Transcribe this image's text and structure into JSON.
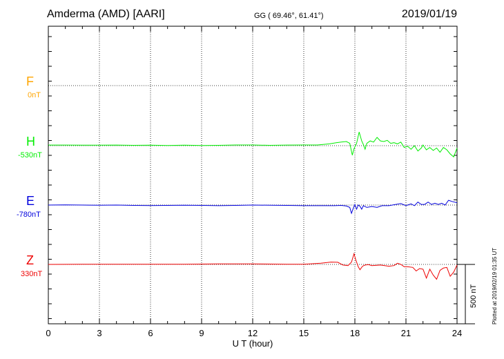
{
  "header": {
    "station": "Amderma (AMD)  [AARI]",
    "coords": "GG ( 69.46°,  61.41°)",
    "date": "2019/01/19"
  },
  "footer": {
    "plotted": "Plotted at 2019/02/19 01:35 UT",
    "scale_bar": "500 nT"
  },
  "chart_data": {
    "type": "line",
    "xlabel": "U T (hour)",
    "xlim": [
      0,
      24
    ],
    "xticks": [
      0,
      3,
      6,
      9,
      12,
      15,
      18,
      21,
      24
    ],
    "x_minor_step": 1,
    "grid": true,
    "scale_bar_nT": 500,
    "series": [
      {
        "name": "F",
        "baseline": "0nT",
        "color": "#ffa500",
        "points": []
      },
      {
        "name": "H",
        "baseline": "-530nT",
        "color": "#00ee00",
        "points": [
          [
            0,
            5
          ],
          [
            1,
            5
          ],
          [
            2,
            4
          ],
          [
            3,
            4
          ],
          [
            4,
            5
          ],
          [
            5,
            3
          ],
          [
            6,
            4
          ],
          [
            7,
            2
          ],
          [
            8,
            4
          ],
          [
            9,
            2
          ],
          [
            10,
            3
          ],
          [
            11,
            6
          ],
          [
            12,
            6
          ],
          [
            13,
            3
          ],
          [
            14,
            5
          ],
          [
            15,
            6
          ],
          [
            15.8,
            6
          ],
          [
            16.5,
            15
          ],
          [
            16.9,
            25
          ],
          [
            17.2,
            30
          ],
          [
            17.5,
            35
          ],
          [
            17.7,
            20
          ],
          [
            17.85,
            -80
          ],
          [
            17.95,
            -25
          ],
          [
            18.1,
            20
          ],
          [
            18.25,
            115
          ],
          [
            18.4,
            40
          ],
          [
            18.5,
            10
          ],
          [
            18.6,
            -30
          ],
          [
            18.7,
            20
          ],
          [
            18.9,
            40
          ],
          [
            19.1,
            30
          ],
          [
            19.3,
            70
          ],
          [
            19.5,
            40
          ],
          [
            19.7,
            35
          ],
          [
            19.9,
            45
          ],
          [
            20.1,
            20
          ],
          [
            20.3,
            25
          ],
          [
            20.5,
            15
          ],
          [
            20.7,
            30
          ],
          [
            20.9,
            -15
          ],
          [
            21.1,
            -5
          ],
          [
            21.3,
            -30
          ],
          [
            21.5,
            0
          ],
          [
            21.7,
            -45
          ],
          [
            21.9,
            -20
          ],
          [
            22.0,
            5
          ],
          [
            22.2,
            -35
          ],
          [
            22.4,
            -15
          ],
          [
            22.6,
            -40
          ],
          [
            22.8,
            -20
          ],
          [
            23.0,
            -55
          ],
          [
            23.2,
            -15
          ],
          [
            23.4,
            -35
          ],
          [
            23.6,
            -70
          ],
          [
            23.8,
            -95
          ],
          [
            24,
            -20
          ]
        ]
      },
      {
        "name": "E",
        "baseline": "-780nT",
        "color": "#0000dd",
        "points": [
          [
            0,
            0
          ],
          [
            1,
            2
          ],
          [
            2,
            0
          ],
          [
            3,
            -2
          ],
          [
            4,
            0
          ],
          [
            5,
            -3
          ],
          [
            6,
            -4
          ],
          [
            7,
            -3
          ],
          [
            8,
            -1
          ],
          [
            9,
            -3
          ],
          [
            10,
            -5
          ],
          [
            11,
            -3
          ],
          [
            12,
            0
          ],
          [
            13,
            -2
          ],
          [
            14,
            -3
          ],
          [
            15,
            -5
          ],
          [
            16,
            -5
          ],
          [
            16.8,
            -5
          ],
          [
            17.2,
            -3
          ],
          [
            17.5,
            -8
          ],
          [
            17.7,
            -20
          ],
          [
            17.8,
            -70
          ],
          [
            17.9,
            -30
          ],
          [
            18.0,
            5
          ],
          [
            18.1,
            -35
          ],
          [
            18.2,
            0
          ],
          [
            18.3,
            -10
          ],
          [
            18.4,
            -35
          ],
          [
            18.5,
            -5
          ],
          [
            18.7,
            -20
          ],
          [
            19,
            -12
          ],
          [
            19.3,
            -20
          ],
          [
            19.6,
            -5
          ],
          [
            20,
            -5
          ],
          [
            20.4,
            5
          ],
          [
            20.7,
            12
          ],
          [
            21,
            -5
          ],
          [
            21.3,
            10
          ],
          [
            21.5,
            -5
          ],
          [
            21.7,
            25
          ],
          [
            21.9,
            5
          ],
          [
            22.1,
            5
          ],
          [
            22.3,
            25
          ],
          [
            22.5,
            5
          ],
          [
            22.7,
            15
          ],
          [
            22.9,
            5
          ],
          [
            23.1,
            15
          ],
          [
            23.3,
            0
          ],
          [
            23.5,
            40
          ],
          [
            23.7,
            30
          ],
          [
            24,
            20
          ]
        ]
      },
      {
        "name": "Z",
        "baseline": "330nT",
        "color": "#ee0000",
        "points": [
          [
            0,
            0
          ],
          [
            2,
            1
          ],
          [
            4,
            2
          ],
          [
            6,
            1
          ],
          [
            8,
            2
          ],
          [
            10,
            4
          ],
          [
            12,
            4
          ],
          [
            14,
            2
          ],
          [
            15,
            2
          ],
          [
            16,
            10
          ],
          [
            16.6,
            20
          ],
          [
            17,
            18
          ],
          [
            17.3,
            -5
          ],
          [
            17.6,
            -10
          ],
          [
            17.8,
            20
          ],
          [
            17.95,
            90
          ],
          [
            18.05,
            40
          ],
          [
            18.2,
            -20
          ],
          [
            18.3,
            -45
          ],
          [
            18.45,
            -15
          ],
          [
            18.6,
            -5
          ],
          [
            18.8,
            -2
          ],
          [
            19,
            -10
          ],
          [
            19.5,
            -5
          ],
          [
            20,
            -15
          ],
          [
            20.3,
            -10
          ],
          [
            20.5,
            10
          ],
          [
            20.7,
            0
          ],
          [
            20.9,
            -20
          ],
          [
            21.1,
            -20
          ],
          [
            21.4,
            -25
          ],
          [
            21.6,
            -55
          ],
          [
            21.8,
            -35
          ],
          [
            22.0,
            -40
          ],
          [
            22.2,
            -115
          ],
          [
            22.4,
            -40
          ],
          [
            22.6,
            -90
          ],
          [
            22.8,
            -125
          ],
          [
            23.0,
            -50
          ],
          [
            23.2,
            -30
          ],
          [
            23.4,
            -25
          ],
          [
            23.6,
            -100
          ],
          [
            23.8,
            -65
          ],
          [
            24,
            -5
          ]
        ]
      }
    ]
  }
}
